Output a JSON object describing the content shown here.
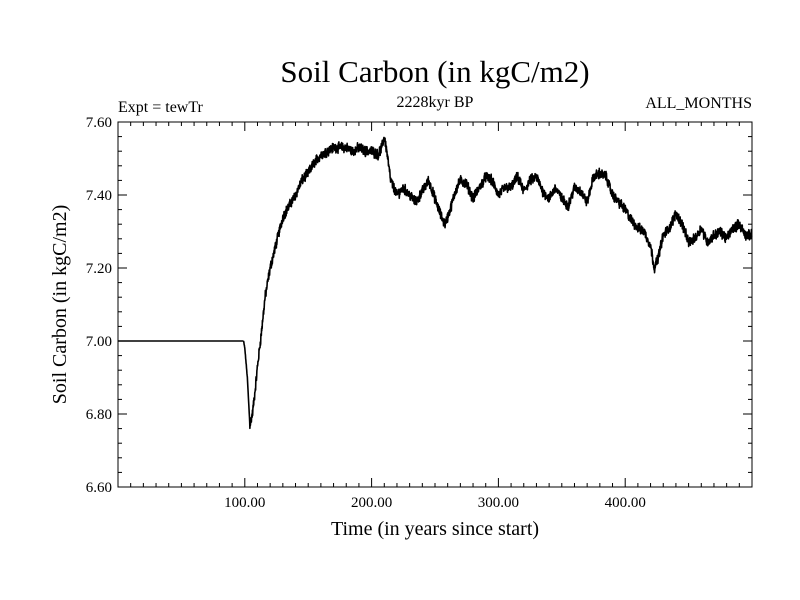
{
  "chart_data": {
    "type": "line",
    "title": "Soil Carbon (in kgC/m2)",
    "subtitle": "2228kyr BP",
    "left_annotation": "Expt = tewTr",
    "right_annotation": "ALL_MONTHS",
    "xlabel": "Time (in years since start)",
    "ylabel": "Soil Carbon (in kgC/m2)",
    "xlim": [
      0,
      500
    ],
    "ylim": [
      6.6,
      7.6
    ],
    "x_ticks": [
      100,
      200,
      300,
      400
    ],
    "x_tick_labels": [
      "100.00",
      "200.00",
      "300.00",
      "400.00"
    ],
    "y_ticks": [
      6.6,
      6.8,
      7.0,
      7.2,
      7.4,
      7.6
    ],
    "y_tick_labels": [
      "6.60",
      "6.80",
      "7.00",
      "7.20",
      "7.40",
      "7.60"
    ],
    "grid": false,
    "series": [
      {
        "name": "Soil Carbon",
        "noise_band": 0.022,
        "x": [
          0,
          99,
          100,
          102,
          104,
          106,
          108,
          110,
          113,
          116,
          120,
          125,
          130,
          135,
          140,
          145,
          150,
          155,
          160,
          165,
          170,
          175,
          180,
          185,
          190,
          195,
          200,
          205,
          208,
          210,
          212,
          215,
          220,
          225,
          230,
          235,
          240,
          245,
          250,
          255,
          258,
          262,
          266,
          270,
          275,
          280,
          285,
          290,
          295,
          300,
          305,
          310,
          315,
          320,
          325,
          330,
          335,
          340,
          345,
          350,
          355,
          360,
          365,
          370,
          375,
          380,
          385,
          390,
          395,
          400,
          405,
          410,
          415,
          420,
          423,
          426,
          430,
          435,
          440,
          445,
          450,
          455,
          460,
          465,
          470,
          475,
          480,
          485,
          490,
          495,
          500
        ],
        "values": [
          7.0,
          7.0,
          6.98,
          6.9,
          6.77,
          6.8,
          6.86,
          6.93,
          7.02,
          7.12,
          7.2,
          7.27,
          7.34,
          7.37,
          7.4,
          7.44,
          7.46,
          7.49,
          7.51,
          7.52,
          7.53,
          7.53,
          7.53,
          7.52,
          7.53,
          7.52,
          7.52,
          7.51,
          7.53,
          7.56,
          7.52,
          7.44,
          7.4,
          7.42,
          7.4,
          7.38,
          7.41,
          7.44,
          7.39,
          7.34,
          7.32,
          7.36,
          7.41,
          7.44,
          7.43,
          7.39,
          7.42,
          7.45,
          7.44,
          7.4,
          7.42,
          7.42,
          7.45,
          7.41,
          7.44,
          7.45,
          7.41,
          7.39,
          7.42,
          7.39,
          7.37,
          7.42,
          7.41,
          7.38,
          7.45,
          7.46,
          7.45,
          7.4,
          7.38,
          7.36,
          7.33,
          7.31,
          7.3,
          7.26,
          7.2,
          7.23,
          7.29,
          7.31,
          7.35,
          7.32,
          7.27,
          7.28,
          7.31,
          7.27,
          7.29,
          7.3,
          7.28,
          7.31,
          7.32,
          7.29,
          7.29
        ]
      }
    ]
  }
}
